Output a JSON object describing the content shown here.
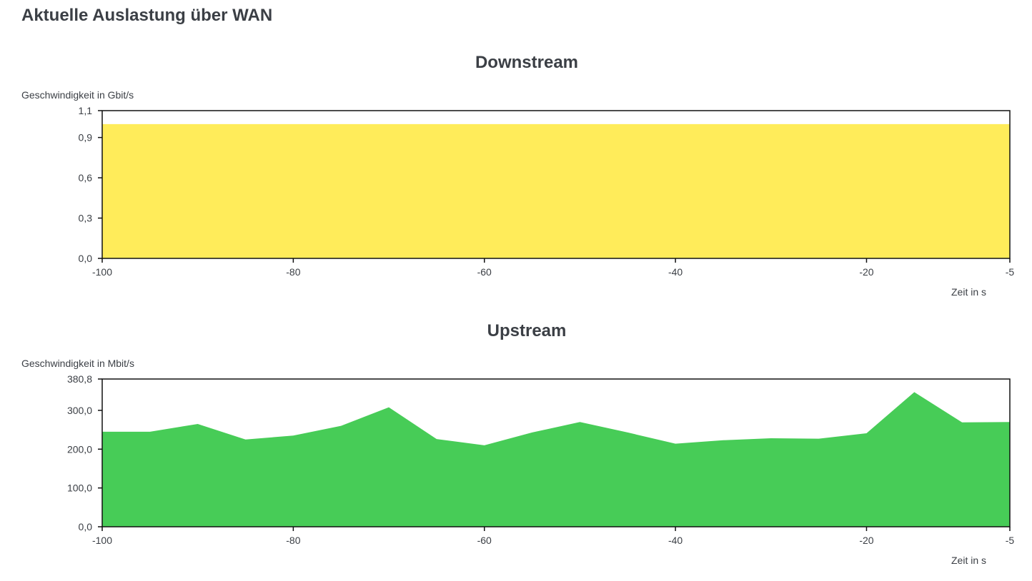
{
  "page": {
    "title": "Aktuelle Auslastung über WAN"
  },
  "chart_data": [
    {
      "type": "area",
      "title": "Downstream",
      "ylabel": "Geschwindigkeit in Gbit/s",
      "xlabel": "Zeit in s",
      "ylim": [
        0,
        1.1
      ],
      "xlim": [
        -100,
        -5
      ],
      "y_ticks": [
        0.0,
        0.3,
        0.6,
        0.9,
        1.1
      ],
      "y_tick_labels": [
        "0,0",
        "0,3",
        "0,6",
        "0,9",
        "1,1"
      ],
      "x_ticks": [
        -100,
        -80,
        -60,
        -40,
        -20,
        -5
      ],
      "x_tick_labels": [
        "-100",
        "-80",
        "-60",
        "-40",
        "-20",
        "-5"
      ],
      "grid": false,
      "color": "#ffec5a",
      "series": [
        {
          "x": [
            -100,
            -95,
            -90,
            -85,
            -80,
            -75,
            -70,
            -65,
            -60,
            -55,
            -50,
            -45,
            -40,
            -35,
            -30,
            -25,
            -20,
            -15,
            -10,
            -5
          ],
          "values": [
            1.0,
            1.0,
            1.0,
            1.0,
            1.0,
            1.0,
            1.0,
            1.0,
            1.0,
            1.0,
            1.0,
            1.0,
            1.0,
            1.0,
            1.0,
            1.0,
            1.0,
            1.0,
            1.0,
            1.0
          ]
        }
      ]
    },
    {
      "type": "area",
      "title": "Upstream",
      "ylabel": "Geschwindigkeit in Mbit/s",
      "xlabel": "Zeit in s",
      "ylim": [
        0,
        380.8
      ],
      "xlim": [
        -100,
        -5
      ],
      "y_ticks": [
        0.0,
        100.0,
        200.0,
        300.0,
        380.8
      ],
      "y_tick_labels": [
        "0,0",
        "100,0",
        "200,0",
        "300,0",
        "380,8"
      ],
      "x_ticks": [
        -100,
        -80,
        -60,
        -40,
        -20,
        -5
      ],
      "x_tick_labels": [
        "-100",
        "-80",
        "-60",
        "-40",
        "-20",
        "-5"
      ],
      "grid": false,
      "color": "#47cc57",
      "series": [
        {
          "x": [
            -100,
            -95,
            -90,
            -85,
            -80,
            -75,
            -70,
            -65,
            -60,
            -55,
            -50,
            -45,
            -40,
            -35,
            -30,
            -25,
            -20,
            -15,
            -10,
            -5
          ],
          "values": [
            245,
            245,
            265,
            225,
            235,
            260,
            308,
            226,
            210,
            243,
            270,
            243,
            214,
            223,
            228,
            227,
            241,
            347,
            269,
            270
          ]
        }
      ]
    }
  ]
}
